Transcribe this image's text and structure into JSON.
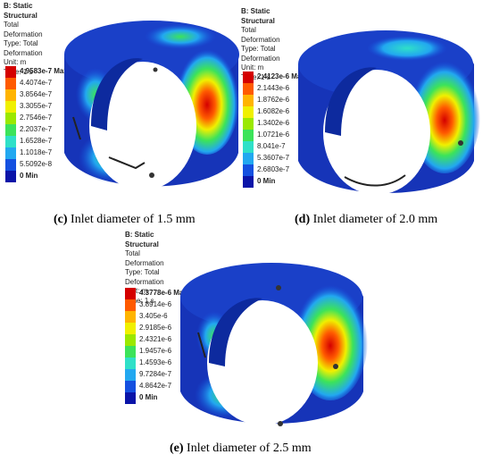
{
  "panels": [
    {
      "id": "c",
      "header": {
        "title": "B: Static Structural",
        "line2": "Total Deformation",
        "line3": "Type: Total Deformation",
        "line4": "Unit: m",
        "line5": "Time: 1 s"
      },
      "legend": [
        "4.9583e-7 Max",
        "4.4074e-7",
        "3.8564e-7",
        "3.3055e-7",
        "2.7546e-7",
        "2.2037e-7",
        "1.6528e-7",
        "1.1018e-7",
        "5.5092e-8",
        "0 Min"
      ],
      "caption_letter": "(c)",
      "caption_text": " Inlet diameter of 1.5 mm"
    },
    {
      "id": "d",
      "header": {
        "title": "B: Static Structural",
        "line2": "Total Deformation",
        "line3": "Type: Total Deformation",
        "line4": "Unit: m",
        "line5": "Time: 1 s"
      },
      "legend": [
        "2.4123e-6 Max",
        "2.1443e-6",
        "1.8762e-6",
        "1.6082e-6",
        "1.3402e-6",
        "1.0721e-6",
        "8.041e-7",
        "5.3607e-7",
        "2.6803e-7",
        "0 Min"
      ],
      "caption_letter": "(d)",
      "caption_text": " Inlet diameter of 2.0 mm"
    },
    {
      "id": "e",
      "header": {
        "title": "B: Static Structural",
        "line2": "Total Deformation",
        "line3": "Type: Total Deformation",
        "line4": "Unit: m",
        "line5": "Time: 1 s"
      },
      "legend": [
        "4.3778e-6 Max",
        "3.8914e-6",
        "3.405e-6",
        "2.9185e-6",
        "2.4321e-6",
        "1.9457e-6",
        "1.4593e-6",
        "9.7284e-7",
        "4.8642e-7",
        "0 Min"
      ],
      "caption_letter": "(e)",
      "caption_text": " Inlet diameter of 2.5 mm"
    }
  ],
  "colors": {
    "scale": [
      "#d40000",
      "#ff5a00",
      "#ffb400",
      "#f0f000",
      "#9be800",
      "#3ce35a",
      "#2fe0c8",
      "#22a8f0",
      "#1450e0",
      "#0a14a8"
    ],
    "ring_base": "#1634b8"
  }
}
